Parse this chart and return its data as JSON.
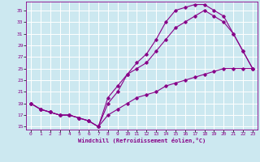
{
  "xlabel": "Windchill (Refroidissement éolien,°C)",
  "bg_color": "#cce8f0",
  "line_color": "#880088",
  "grid_color": "#ffffff",
  "xlim": [
    -0.5,
    23.5
  ],
  "ylim": [
    14.5,
    36.5
  ],
  "xticks": [
    0,
    1,
    2,
    3,
    4,
    5,
    6,
    7,
    8,
    9,
    10,
    11,
    12,
    13,
    14,
    15,
    16,
    17,
    18,
    19,
    20,
    21,
    22,
    23
  ],
  "yticks": [
    15,
    17,
    19,
    21,
    23,
    25,
    27,
    29,
    31,
    33,
    35
  ],
  "curve1_x": [
    0,
    1,
    2,
    3,
    4,
    5,
    6,
    7,
    8,
    9,
    10,
    11,
    12,
    13,
    14,
    15,
    16,
    17,
    18,
    19,
    20,
    21,
    22,
    23
  ],
  "curve1_y": [
    19,
    18,
    17.5,
    17,
    17,
    16.5,
    16,
    15,
    19,
    21,
    24,
    26,
    27.5,
    30,
    33,
    35,
    35.5,
    36,
    36,
    35,
    34,
    31,
    28,
    25
  ],
  "curve2_x": [
    0,
    1,
    2,
    3,
    4,
    5,
    6,
    7,
    8,
    9,
    10,
    11,
    12,
    13,
    14,
    15,
    16,
    17,
    18,
    19,
    20,
    21,
    22,
    23
  ],
  "curve2_y": [
    19,
    18,
    17.5,
    17,
    17,
    16.5,
    16,
    15,
    20,
    22,
    24,
    25,
    26,
    28,
    30,
    32,
    33,
    34,
    35,
    34,
    33,
    31,
    28,
    25
  ],
  "curve3_x": [
    0,
    1,
    2,
    3,
    4,
    5,
    6,
    7,
    8,
    9,
    10,
    11,
    12,
    13,
    14,
    15,
    16,
    17,
    18,
    19,
    20,
    21,
    22,
    23
  ],
  "curve3_y": [
    19,
    18,
    17.5,
    17,
    17,
    16.5,
    16,
    15,
    17,
    18,
    19,
    20,
    20.5,
    21,
    22,
    22.5,
    23,
    23.5,
    24,
    24.5,
    25,
    25,
    25,
    25
  ]
}
